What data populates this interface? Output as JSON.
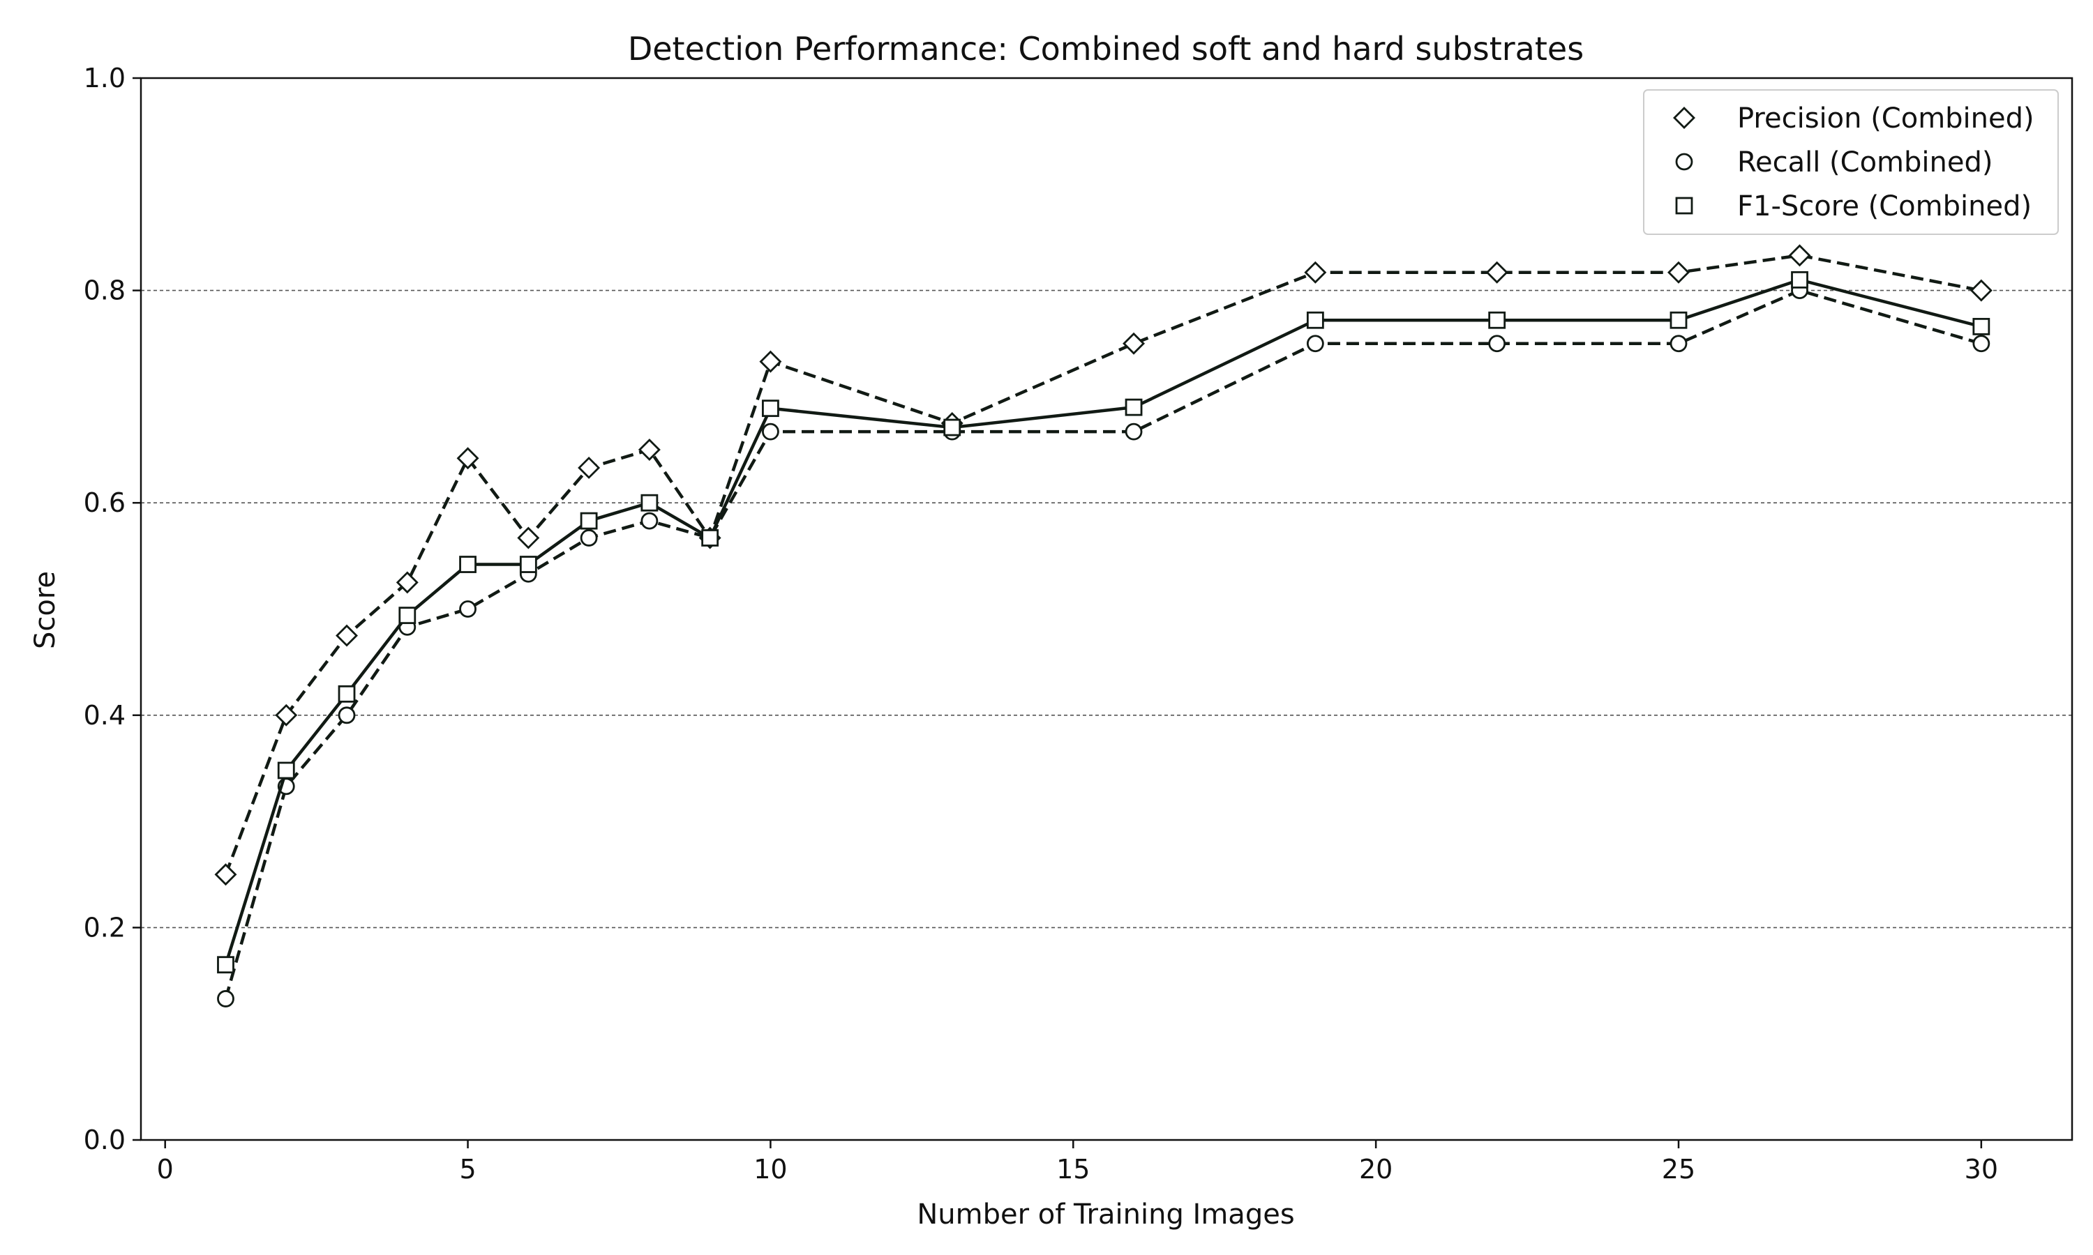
{
  "chart_data": {
    "type": "line",
    "title": "Detection Performance: Combined soft and hard substrates",
    "xlabel": "Number of Training Images",
    "ylabel": "Score",
    "xlim": [
      -0.4,
      31.5
    ],
    "ylim": [
      0.0,
      1.0
    ],
    "xticks": [
      0,
      5,
      10,
      15,
      20,
      25,
      30
    ],
    "yticks": [
      0.0,
      0.2,
      0.4,
      0.6,
      0.8,
      1.0
    ],
    "xtick_labels": [
      "0",
      "5",
      "10",
      "15",
      "20",
      "25",
      "30"
    ],
    "ytick_labels": [
      "0.0",
      "0.2",
      "0.4",
      "0.6",
      "0.8",
      "1.0"
    ],
    "grid": "horizontal dashed",
    "legend_position": "top-right",
    "x": [
      1,
      2,
      3,
      4,
      5,
      6,
      7,
      8,
      9,
      10,
      13,
      16,
      19,
      22,
      25,
      27,
      30
    ],
    "series": [
      {
        "name": "Precision (Combined)",
        "marker": "diamond",
        "line_style": "dashed",
        "values": [
          0.25,
          0.4,
          0.475,
          0.525,
          0.642,
          0.567,
          0.633,
          0.65,
          0.567,
          0.733,
          0.675,
          0.75,
          0.817,
          0.817,
          0.817,
          0.833,
          0.8
        ]
      },
      {
        "name": "Recall (Combined)",
        "marker": "circle",
        "line_style": "dashed",
        "values": [
          0.133,
          0.333,
          0.4,
          0.483,
          0.5,
          0.533,
          0.567,
          0.583,
          0.567,
          0.667,
          0.667,
          0.667,
          0.75,
          0.75,
          0.75,
          0.8,
          0.75
        ]
      },
      {
        "name": "F1-Score (Combined)",
        "marker": "square",
        "line_style": "solid",
        "values": [
          0.165,
          0.348,
          0.42,
          0.494,
          0.542,
          0.542,
          0.583,
          0.6,
          0.567,
          0.689,
          0.671,
          0.69,
          0.772,
          0.772,
          0.772,
          0.81,
          0.766
        ]
      }
    ]
  },
  "colors": {
    "line": "#111a14",
    "grid": "#555555",
    "axis": "#111111",
    "background": "#ffffff"
  }
}
